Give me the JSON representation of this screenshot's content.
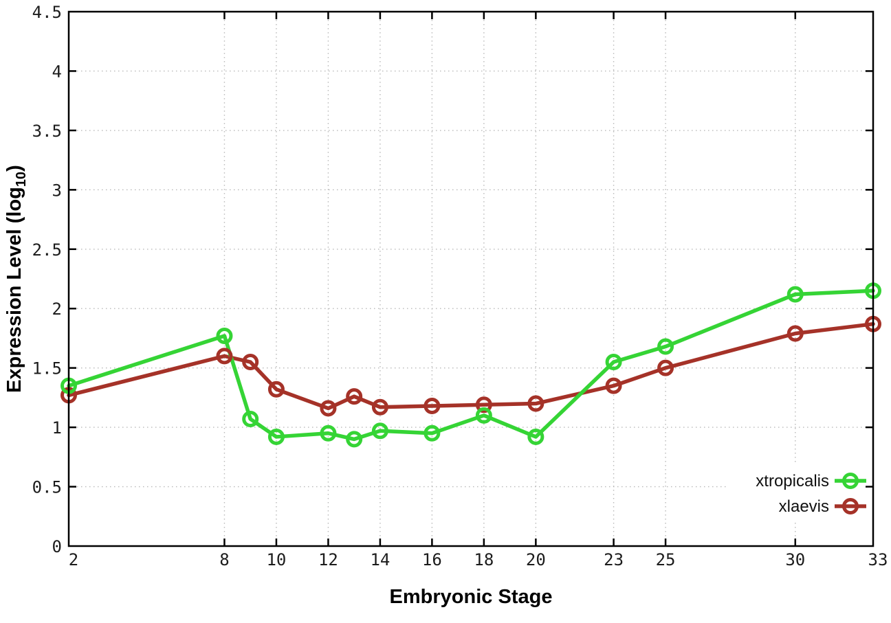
{
  "chart_data": {
    "type": "line",
    "title": "",
    "xlabel": "Embryonic Stage",
    "ylabel": "Expression Level (log10)",
    "ylabel_parts": {
      "pre": "Expression Level (log",
      "sub": "10",
      "post": ")"
    },
    "xlim": [
      2,
      33
    ],
    "ylim": [
      0,
      4.5
    ],
    "x": [
      2,
      8,
      9,
      10,
      12,
      13,
      14,
      16,
      18,
      20,
      23,
      25,
      30,
      33
    ],
    "xticks": [
      2,
      8,
      10,
      12,
      14,
      16,
      18,
      20,
      23,
      25,
      30,
      33
    ],
    "xtick_labels": [
      "2",
      "8",
      "10",
      "12",
      "14",
      "16",
      "18",
      "20",
      "23",
      "25",
      "30",
      "33"
    ],
    "yticks": [
      0,
      0.5,
      1,
      1.5,
      2,
      2.5,
      3,
      3.5,
      4,
      4.5
    ],
    "ytick_labels": [
      "0",
      "0.5",
      "1",
      "1.5",
      "2",
      "2.5",
      "3",
      "3.5",
      "4",
      "4.5"
    ],
    "grid": true,
    "legend_position": "bottom-right",
    "series": [
      {
        "name": "xtropicalis",
        "color": "#35d435",
        "values": [
          1.35,
          1.77,
          1.07,
          0.92,
          0.95,
          0.9,
          0.97,
          0.95,
          1.1,
          0.92,
          1.55,
          1.68,
          2.12,
          2.15
        ]
      },
      {
        "name": "xlaevis",
        "color": "#a53228",
        "values": [
          1.27,
          1.6,
          1.55,
          1.32,
          1.16,
          1.26,
          1.17,
          1.18,
          1.19,
          1.2,
          1.35,
          1.5,
          1.79,
          1.87
        ]
      }
    ]
  },
  "colors": {
    "grid": "#b8b8b8",
    "frame": "#000000",
    "tick_label": "#1c1c1c",
    "background": "#ffffff"
  }
}
